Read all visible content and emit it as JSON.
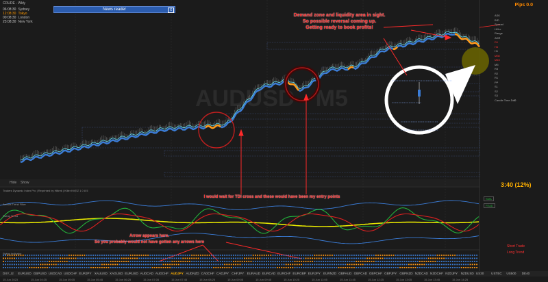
{
  "window": {
    "title": "CRUDE - Wkly"
  },
  "sessions": [
    {
      "time": "06:08:30",
      "name": "Sydney",
      "active": false
    },
    {
      "time": "12:08:30",
      "name": "Tokyo",
      "active": true
    },
    {
      "time": "00:08:30",
      "name": "London",
      "active": false
    },
    {
      "time": "23:08:30",
      "name": "New York",
      "active": false
    }
  ],
  "news_reader": {
    "title": "News reader",
    "close_label": "X"
  },
  "watermark": "AUDUSD - M5",
  "pips": "Pips 0.0",
  "timer": "3:40 (12%)",
  "chart_tabs": [
    "Hide",
    "Show"
  ],
  "annotations": {
    "demand_zone": "Demand zone and liquidity area in sight.\nSo possible reversal coming up.\nGetting ready to book profits!",
    "tdi_cross": "I would wait for TDI cross and these would have been my entry points",
    "arrow_note": "Arrow appears here.\nSo you probably would not have gotten any arrows here"
  },
  "indicator_labels": {
    "tdi_header": "Traders Dynamic Index Pro | Reprinted by Hiltrek | Killer Kit EZ 1 0 8 5",
    "trend_a": "Arrows Trend Filter",
    "trend_b": "Swing Trend",
    "ma_a": "SMA",
    "ma_b": "FEAD",
    "swing": "Swing Indicator"
  },
  "status_labels": {
    "short": "Short Trade",
    "long": "Long Trend"
  },
  "side_panel": [
    {
      "label": "ASK",
      "value": "",
      "red": false
    },
    {
      "label": "BID",
      "value": "",
      "red": false
    },
    {
      "label": "Spread",
      "value": "",
      "red": false
    },
    {
      "label": "Hi/Lo",
      "value": "",
      "red": false
    },
    {
      "label": "Range",
      "value": "",
      "red": false
    },
    {
      "label": "ADR",
      "value": "",
      "red": false
    },
    {
      "label": "D1",
      "value": "",
      "red": true
    },
    {
      "label": "H4",
      "value": "",
      "red": true
    },
    {
      "label": "H1",
      "value": "",
      "red": false
    },
    {
      "label": "M30",
      "value": "",
      "red": true
    },
    {
      "label": "M15",
      "value": "",
      "red": true
    },
    {
      "label": "M5",
      "value": "",
      "red": false
    },
    {
      "label": "R3",
      "value": "",
      "red": false
    },
    {
      "label": "R2",
      "value": "",
      "red": false
    },
    {
      "label": "R1",
      "value": "",
      "red": false
    },
    {
      "label": "PP",
      "value": "",
      "red": false
    },
    {
      "label": "S1",
      "value": "",
      "red": false
    },
    {
      "label": "S2",
      "value": "",
      "red": false
    },
    {
      "label": "S3",
      "value": "",
      "red": false
    },
    {
      "label": "Candle Time",
      "value": "3:40",
      "red": false
    }
  ],
  "symbols": [
    {
      "name": "DXY_I2",
      "active": false
    },
    {
      "name": "EURUSD",
      "active": false
    },
    {
      "name": "GBPUSD",
      "active": false
    },
    {
      "name": "USDCAD",
      "active": false
    },
    {
      "name": "USDCHF",
      "active": false
    },
    {
      "name": "EURJPY",
      "active": false
    },
    {
      "name": "XAUUSD",
      "active": false
    },
    {
      "name": "XAGUSD",
      "active": false
    },
    {
      "name": "EURUSD",
      "active": false
    },
    {
      "name": "AUDCAD",
      "active": false
    },
    {
      "name": "AUDCHF",
      "active": false
    },
    {
      "name": "AUDJPY",
      "active": true
    },
    {
      "name": "AUDNZD",
      "active": false
    },
    {
      "name": "CADCHF",
      "active": false
    },
    {
      "name": "CADJPY",
      "active": false
    },
    {
      "name": "CHFJPY",
      "active": false
    },
    {
      "name": "EURAUD",
      "active": false
    },
    {
      "name": "EURCAD",
      "active": false
    },
    {
      "name": "EURCHF",
      "active": false
    },
    {
      "name": "EURGBP",
      "active": false
    },
    {
      "name": "EURJPY",
      "active": false
    },
    {
      "name": "EURNZD",
      "active": false
    },
    {
      "name": "GBPAUD",
      "active": false
    },
    {
      "name": "GBPCAD",
      "active": false
    },
    {
      "name": "GBPCHF",
      "active": false
    },
    {
      "name": "GBPJPY",
      "active": false
    },
    {
      "name": "GBPNZD",
      "active": false
    },
    {
      "name": "NZDCAD",
      "active": false
    },
    {
      "name": "NZDCHF",
      "active": false
    },
    {
      "name": "NZDJPY",
      "active": false
    },
    {
      "name": "NZDUSD",
      "active": false
    },
    {
      "name": "US30",
      "active": false
    },
    {
      "name": "USTEC",
      "active": false
    },
    {
      "name": "US500",
      "active": false
    },
    {
      "name": "DE40",
      "active": false
    }
  ],
  "time_axis": [
    "15 Jun 2023",
    "15 Jun 04:25",
    "15 Jun 05:05",
    "15 Jun 05:45",
    "15 Jun 06:25",
    "15 Jun 07:05",
    "15 Jun 07:45",
    "15 Jun 08:25",
    "15 Jun 09:05",
    "15 Jun 09:45",
    "15 Jun 10:25",
    "15 Jun 11:05",
    "15 Jun 11:45",
    "15 Jun 12:25",
    "15 Jun 13:05",
    "15 Jun 13:45",
    "15 Jun 14:25"
  ],
  "colors": {
    "bg": "#1b1b1b",
    "blue": "#3b7dd8",
    "cyan": "#5fd0e0",
    "orange": "#ff9a1a",
    "red": "#ff2a2a",
    "green": "#23b23a",
    "yellow": "#e8e800"
  }
}
